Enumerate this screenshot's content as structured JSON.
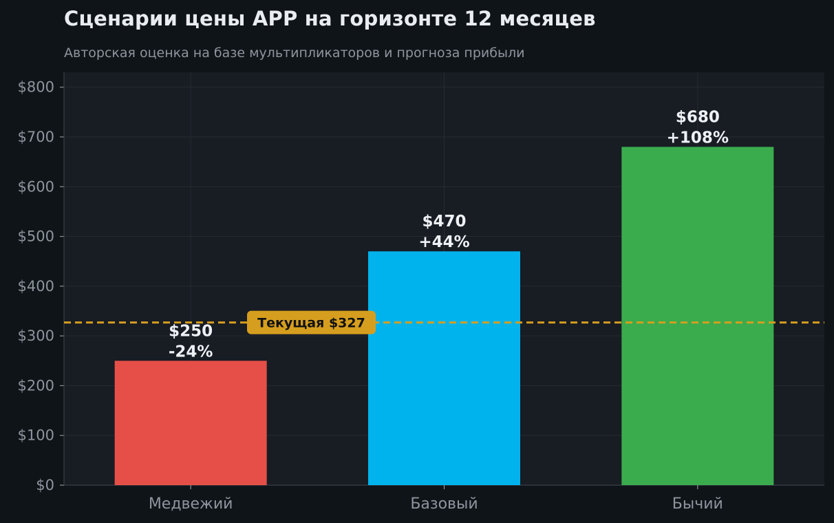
{
  "title": "Сценарии цены APP на горизонте 12 месяцев",
  "subtitle": "Авторская оценка на базе мультипликаторов и прогноза прибыли",
  "colors": {
    "background": "#0f1418",
    "plot_background": "#181c23",
    "grid": "#262b33",
    "tick_text": "#8e959e",
    "label_text": "#eef1f5",
    "current_line": "#d69e1e",
    "current_box": "#d69e1e",
    "current_text": "#111111"
  },
  "chart_data": {
    "type": "bar",
    "title": "Сценарии цены APP на горизонте 12 месяцев",
    "subtitle": "Авторская оценка на базе мультипликаторов и прогноза прибыли",
    "categories": [
      "Медвежий",
      "Базовый",
      "Бычий"
    ],
    "values": [
      250,
      470,
      680
    ],
    "bar_colors": [
      "#e64f48",
      "#00b3ec",
      "#3bac4e"
    ],
    "bar_labels": [
      {
        "price": "$250",
        "change": "-24%"
      },
      {
        "price": "$470",
        "change": "+44%"
      },
      {
        "price": "$680",
        "change": "+108%"
      }
    ],
    "reference_line": {
      "value": 327,
      "label": "Текущая $327",
      "style": "dashed"
    },
    "ylim": [
      0,
      830
    ],
    "yticks": [
      0,
      100,
      200,
      300,
      400,
      500,
      600,
      700,
      800
    ],
    "ytick_labels": [
      "$0",
      "$100",
      "$200",
      "$300",
      "$400",
      "$500",
      "$600",
      "$700",
      "$800"
    ],
    "xlabel": "",
    "ylabel": "",
    "grid": true,
    "legend": "none"
  }
}
